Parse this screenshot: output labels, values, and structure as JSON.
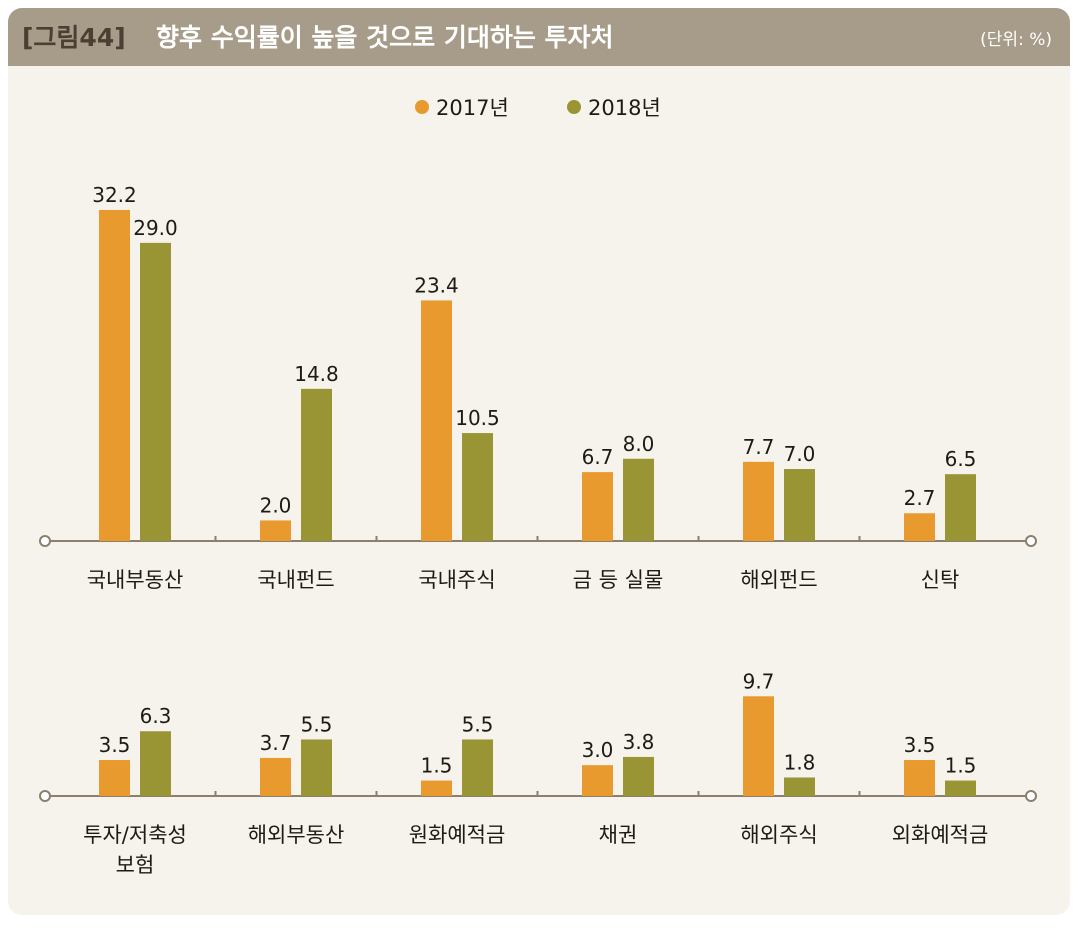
{
  "header": {
    "figure_label": "[그림44]",
    "title": "향후 수익률이 높을 것으로 기대하는 투자처",
    "unit": "(단위: %)"
  },
  "colors": {
    "s2017": "#e89a2e",
    "s2018": "#999535",
    "axis": "#8c7f6d"
  },
  "chart_data": [
    {
      "type": "bar",
      "title": "향후 수익률이 높을 것으로 기대하는 투자처",
      "legend": [
        "2017년",
        "2018년"
      ],
      "categories": [
        "국내부동산",
        "국내펀드",
        "국내주식",
        "금 등 실물",
        "해외펀드",
        "신탁"
      ],
      "series": [
        {
          "name": "2017년",
          "values": [
            32.2,
            2.0,
            23.4,
            6.7,
            7.7,
            2.7
          ]
        },
        {
          "name": "2018년",
          "values": [
            29.0,
            14.8,
            10.5,
            8.0,
            7.0,
            6.5
          ]
        }
      ],
      "ylim": [
        0,
        35
      ]
    },
    {
      "type": "bar",
      "categories": [
        "투자/저축성\n보험",
        "해외부동산",
        "원화예적금",
        "채권",
        "해외주식",
        "외화예적금"
      ],
      "series": [
        {
          "name": "2017년",
          "values": [
            3.5,
            3.7,
            1.5,
            3.0,
            9.7,
            3.5
          ]
        },
        {
          "name": "2018년",
          "values": [
            6.3,
            5.5,
            5.5,
            3.8,
            1.8,
            1.5
          ]
        }
      ],
      "ylim": [
        0,
        35
      ]
    }
  ]
}
